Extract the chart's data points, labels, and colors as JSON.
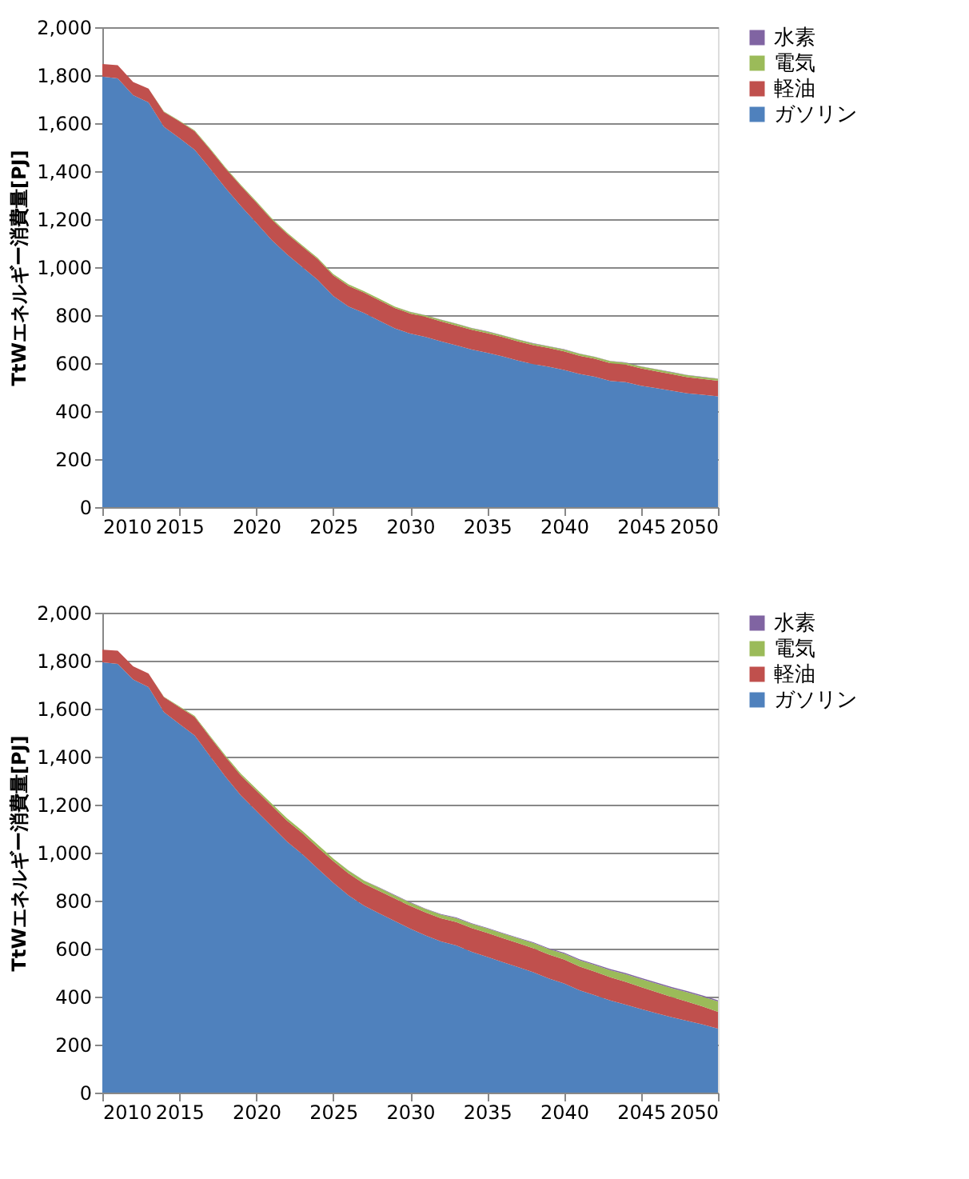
{
  "chart_data": [
    {
      "type": "area",
      "stacked": true,
      "ylabel": "TtWエネルギー消費量[PJ]",
      "legend": "right",
      "grid": "y",
      "xlim": [
        2010,
        2050
      ],
      "xticks": [
        2010,
        2015,
        2020,
        2025,
        2030,
        2035,
        2040,
        2045,
        2050
      ],
      "ylim": [
        0,
        2000
      ],
      "yticks": [
        {
          "value": 0,
          "label": "0"
        },
        {
          "value": 200,
          "label": "200"
        },
        {
          "value": 400,
          "label": "400"
        },
        {
          "value": 600,
          "label": "600"
        },
        {
          "value": 800,
          "label": "800"
        },
        {
          "value": 1000,
          "label": "1,000"
        },
        {
          "value": 1200,
          "label": "1,200"
        },
        {
          "value": 1400,
          "label": "1,400"
        },
        {
          "value": 1600,
          "label": "1,600"
        },
        {
          "value": 1800,
          "label": "1,800"
        },
        {
          "value": 2000,
          "label": "2,000"
        }
      ],
      "x": [
        2010,
        2011,
        2012,
        2013,
        2014,
        2015,
        2016,
        2017,
        2018,
        2019,
        2020,
        2021,
        2022,
        2023,
        2024,
        2025,
        2026,
        2027,
        2028,
        2029,
        2030,
        2031,
        2032,
        2033,
        2034,
        2035,
        2036,
        2037,
        2038,
        2039,
        2040,
        2041,
        2042,
        2043,
        2044,
        2045,
        2046,
        2047,
        2048,
        2049,
        2050
      ],
      "series": [
        {
          "name": "ガソリン",
          "color": "#4f81bd",
          "values": [
            1794,
            1787,
            1717,
            1687,
            1585,
            1538,
            1489,
            1411,
            1330,
            1255,
            1185,
            1113,
            1053,
            1000,
            947,
            880,
            836,
            809,
            777,
            745,
            723,
            709,
            691,
            674,
            657,
            643,
            628,
            611,
            596,
            585,
            572,
            555,
            543,
            526,
            521,
            506,
            496,
            485,
            474,
            468,
            462
          ]
        },
        {
          "name": "軽油",
          "color": "#c0504d",
          "values": [
            53,
            55,
            55,
            57,
            62,
            70,
            78,
            80,
            82,
            84,
            85,
            86,
            86,
            86,
            86,
            86,
            86,
            85,
            85,
            85,
            84,
            84,
            83,
            83,
            82,
            82,
            81,
            80,
            79,
            78,
            77,
            76,
            75,
            74,
            73,
            72,
            70,
            69,
            68,
            66,
            65
          ]
        },
        {
          "name": "電気",
          "color": "#9bbb59",
          "values": [
            0,
            0,
            0,
            0,
            2,
            3,
            3,
            4,
            4,
            4,
            5,
            5,
            5,
            5,
            5,
            6,
            6,
            6,
            6,
            6,
            6,
            6,
            7,
            7,
            7,
            7,
            7,
            7,
            7,
            7,
            8,
            8,
            8,
            8,
            8,
            8,
            8,
            8,
            8,
            8,
            8
          ]
        },
        {
          "name": "水素",
          "color": "#8064a2",
          "values": [
            0,
            0,
            0,
            0,
            0,
            0,
            0,
            0,
            0,
            0,
            0,
            0,
            0,
            0,
            0,
            0,
            0,
            0,
            0,
            0,
            1,
            1,
            1,
            1,
            1,
            1,
            1,
            1,
            1,
            1,
            1,
            1,
            1,
            1,
            1,
            1,
            1,
            1,
            1,
            1,
            1
          ]
        }
      ]
    },
    {
      "type": "area",
      "stacked": true,
      "ylabel": "TtWエネルギー消費量[PJ]",
      "legend": "right",
      "grid": "y",
      "xlim": [
        2010,
        2050
      ],
      "xticks": [
        2010,
        2015,
        2020,
        2025,
        2030,
        2035,
        2040,
        2045,
        2050
      ],
      "ylim": [
        0,
        2000
      ],
      "yticks": [
        {
          "value": 0,
          "label": "0"
        },
        {
          "value": 200,
          "label": "200"
        },
        {
          "value": 400,
          "label": "400"
        },
        {
          "value": 600,
          "label": "600"
        },
        {
          "value": 800,
          "label": "800"
        },
        {
          "value": 1000,
          "label": "1,000"
        },
        {
          "value": 1200,
          "label": "1,200"
        },
        {
          "value": 1400,
          "label": "1,400"
        },
        {
          "value": 1600,
          "label": "1,600"
        },
        {
          "value": 1800,
          "label": "1,800"
        },
        {
          "value": 2000,
          "label": "2,000"
        }
      ],
      "x": [
        2010,
        2011,
        2012,
        2013,
        2014,
        2015,
        2016,
        2017,
        2018,
        2019,
        2020,
        2021,
        2022,
        2023,
        2024,
        2025,
        2026,
        2027,
        2028,
        2029,
        2030,
        2031,
        2032,
        2033,
        2034,
        2035,
        2036,
        2037,
        2038,
        2039,
        2040,
        2041,
        2042,
        2043,
        2044,
        2045,
        2046,
        2047,
        2048,
        2049,
        2050
      ],
      "series": [
        {
          "name": "ガソリン",
          "color": "#4f81bd",
          "values": [
            1793,
            1787,
            1722,
            1690,
            1586,
            1537,
            1488,
            1402,
            1317,
            1238,
            1174,
            1110,
            1046,
            993,
            933,
            875,
            822,
            779,
            747,
            715,
            683,
            655,
            630,
            613,
            587,
            566,
            544,
            523,
            502,
            476,
            455,
            427,
            406,
            384,
            367,
            348,
            331,
            314,
            299,
            284,
            267
          ]
        },
        {
          "name": "軽油",
          "color": "#c0504d",
          "values": [
            53,
            55,
            55,
            57,
            62,
            70,
            78,
            80,
            82,
            84,
            85,
            86,
            87,
            88,
            89,
            90,
            91,
            92,
            93,
            94,
            95,
            96,
            97,
            98,
            99,
            100,
            100,
            100,
            100,
            100,
            100,
            99,
            98,
            97,
            95,
            92,
            88,
            84,
            80,
            75,
            70
          ]
        },
        {
          "name": "電気",
          "color": "#9bbb59",
          "values": [
            0,
            0,
            0,
            0,
            2,
            3,
            4,
            5,
            6,
            7,
            8,
            9,
            10,
            10,
            11,
            11,
            12,
            12,
            13,
            13,
            14,
            14,
            15,
            16,
            17,
            18,
            19,
            20,
            21,
            22,
            24,
            26,
            28,
            29,
            31,
            33,
            35,
            37,
            39,
            41,
            43
          ]
        },
        {
          "name": "水素",
          "color": "#8064a2",
          "values": [
            0,
            0,
            0,
            0,
            0,
            0,
            0,
            0,
            0,
            0,
            0,
            0,
            0,
            0,
            0,
            0,
            1,
            1,
            2,
            2,
            2,
            2,
            2,
            3,
            3,
            3,
            3,
            3,
            4,
            4,
            4,
            4,
            4,
            5,
            5,
            5,
            5,
            5,
            5,
            5,
            5
          ]
        }
      ]
    }
  ]
}
